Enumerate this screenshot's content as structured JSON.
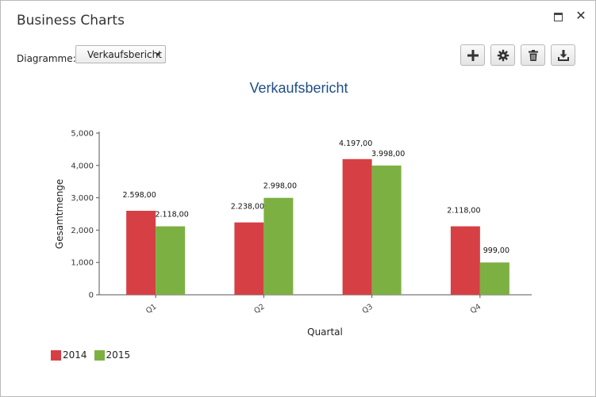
{
  "window": {
    "title": "Business Charts"
  },
  "toolbar": {
    "diagram_label": "Diagramme:",
    "diagram_selected": "Verkaufsbericht",
    "buttons": [
      "add-icon",
      "gear-icon",
      "trash-icon",
      "download-icon"
    ]
  },
  "colors": {
    "s2014": "#d64045",
    "s2015": "#7db043",
    "title": "#1f4e87"
  },
  "chart_data": {
    "type": "bar",
    "title": "Verkaufsbericht",
    "xlabel": "Quartal",
    "ylabel": "Gesamtmenge",
    "categories": [
      "Q1",
      "Q2",
      "Q3",
      "Q4"
    ],
    "ylim": [
      0,
      5000
    ],
    "yticks": [
      0,
      1000,
      2000,
      3000,
      4000,
      5000
    ],
    "ytick_labels": [
      "0",
      "1,000",
      "2,000",
      "3,000",
      "4,000",
      "5,000"
    ],
    "series": [
      {
        "name": "2014",
        "values": [
          2598,
          2238,
          4197,
          2118
        ],
        "labels": [
          "2.598,00",
          "2.238,00",
          "4.197,00",
          "2.118,00"
        ]
      },
      {
        "name": "2015",
        "values": [
          2118,
          2998,
          3998,
          999
        ],
        "labels": [
          "2.118,00",
          "2.998,00",
          "3.998,00",
          "999,00"
        ]
      }
    ],
    "legend": "bottom-left",
    "grid": false
  }
}
